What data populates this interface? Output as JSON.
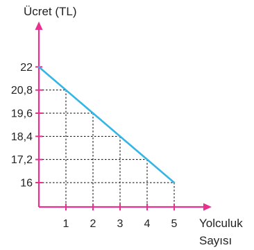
{
  "chart_data": {
    "type": "line",
    "xlabel_line1": "Yolculuk",
    "xlabel_line2": "Sayısı",
    "ylabel": "Ücret (TL)",
    "x": [
      0,
      1,
      2,
      3,
      4,
      5
    ],
    "y": [
      22,
      20.8,
      19.6,
      18.4,
      17.2,
      16
    ],
    "x_ticks": [
      "1",
      "2",
      "3",
      "4",
      "5"
    ],
    "y_ticks": [
      "22",
      "20,8",
      "19,6",
      "18,4",
      "17,2",
      "16"
    ],
    "colors": {
      "axis": "#e8308f",
      "line": "#33b5e5",
      "grid": "#000000"
    },
    "grid": "dashed"
  }
}
